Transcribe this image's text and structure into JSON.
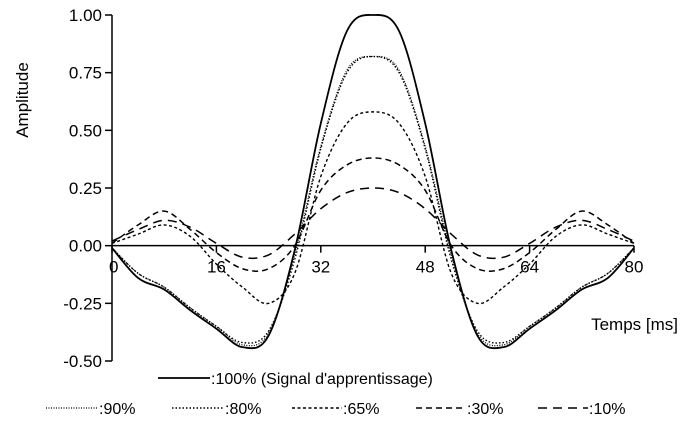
{
  "chart_data": {
    "type": "line",
    "title": "",
    "xlabel": "Temps [ms]",
    "ylabel": "Amplitude",
    "xlim": [
      0,
      80
    ],
    "ylim": [
      -0.5,
      1.0
    ],
    "x_ticks": [
      "0",
      "16",
      "32",
      "48",
      "64",
      "80"
    ],
    "x_tick_values": [
      0,
      16,
      32,
      48,
      64,
      80
    ],
    "y_ticks": [
      "1.00",
      "0.75",
      "0.50",
      "0.25",
      "0.00",
      "-0.25",
      "-0.50"
    ],
    "y_tick_values": [
      1.0,
      0.75,
      0.5,
      0.25,
      0.0,
      -0.25,
      -0.5
    ],
    "grid": false,
    "legend_position": "bottom",
    "x": [
      0,
      4,
      8,
      12,
      16,
      20,
      24,
      28,
      32,
      36,
      40,
      44,
      48,
      52,
      56,
      60,
      64,
      68,
      72,
      76,
      80
    ],
    "series": [
      {
        "name": ":100% (Signal d'apprentissage)",
        "dash": "solid",
        "values": [
          -0.01,
          -0.14,
          -0.19,
          -0.28,
          -0.36,
          -0.44,
          -0.39,
          -0.02,
          0.53,
          0.93,
          1.0,
          0.93,
          0.53,
          -0.02,
          -0.39,
          -0.44,
          -0.36,
          -0.28,
          -0.19,
          -0.14,
          -0.01
        ]
      },
      {
        "name": ":90%",
        "dash": "dotted-fine",
        "values": [
          -0.01,
          -0.12,
          -0.18,
          -0.27,
          -0.35,
          -0.43,
          -0.38,
          -0.04,
          0.43,
          0.76,
          0.82,
          0.76,
          0.43,
          -0.04,
          -0.38,
          -0.43,
          -0.35,
          -0.27,
          -0.18,
          -0.12,
          -0.01
        ]
      },
      {
        "name": ":80%",
        "dash": "dotted",
        "values": [
          -0.01,
          -0.12,
          -0.18,
          -0.27,
          -0.35,
          -0.42,
          -0.37,
          -0.06,
          0.42,
          0.75,
          0.82,
          0.75,
          0.42,
          -0.06,
          -0.37,
          -0.42,
          -0.35,
          -0.27,
          -0.18,
          -0.12,
          -0.01
        ]
      },
      {
        "name": ":65%",
        "dash": "short-dash",
        "values": [
          0.01,
          0.05,
          0.09,
          0.04,
          -0.08,
          -0.18,
          -0.25,
          -0.12,
          0.3,
          0.53,
          0.58,
          0.53,
          0.3,
          -0.12,
          -0.25,
          -0.18,
          -0.08,
          0.04,
          0.09,
          0.05,
          0.01
        ]
      },
      {
        "name": ":30%",
        "dash": "dash",
        "values": [
          0.01,
          0.09,
          0.15,
          0.07,
          -0.03,
          -0.1,
          -0.1,
          0.0,
          0.24,
          0.35,
          0.38,
          0.35,
          0.24,
          0.0,
          -0.1,
          -0.1,
          -0.03,
          0.07,
          0.15,
          0.09,
          0.01
        ]
      },
      {
        "name": ":10%",
        "dash": "long-dash",
        "values": [
          0.02,
          0.07,
          0.11,
          0.08,
          0.01,
          -0.05,
          -0.04,
          0.05,
          0.16,
          0.23,
          0.25,
          0.23,
          0.16,
          0.05,
          -0.04,
          -0.05,
          0.01,
          0.08,
          0.11,
          0.07,
          0.02
        ]
      }
    ]
  },
  "colors": {
    "line": "#000000",
    "background": "#ffffff"
  }
}
